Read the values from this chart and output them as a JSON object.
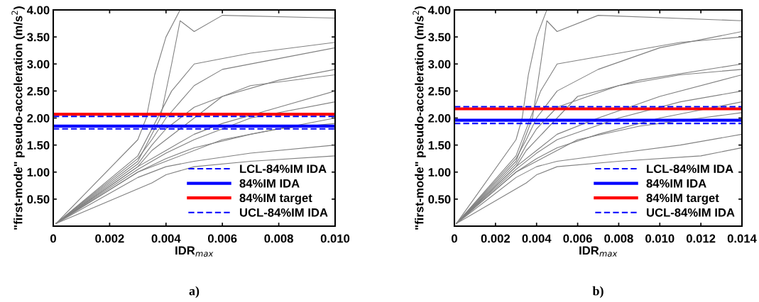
{
  "chart_data": [
    {
      "type": "line",
      "xlabel": "IDR$_{max}$",
      "ylabel": "\"first-mode\" pseudo-acceleration (m/s$^{2}$)",
      "annotations": [
        "a)"
      ],
      "xlim": [
        0,
        0.01
      ],
      "xticks": [
        0,
        0.002,
        0.004,
        0.006,
        0.008,
        {
          "value": 0.01,
          "label": "0.010"
        }
      ],
      "ylim": [
        0,
        4
      ],
      "yticks": [
        {
          "value": 0.5,
          "label": "0.50"
        },
        {
          "value": 1,
          "label": "1.00"
        },
        {
          "value": 1.5,
          "label": "1.50"
        },
        {
          "value": 2,
          "label": "2.00"
        },
        {
          "value": 2.5,
          "label": "2.50"
        },
        {
          "value": 3,
          "label": "3.00"
        },
        {
          "value": 3.5,
          "label": "3.50"
        },
        {
          "value": 4,
          "label": "4.00"
        }
      ],
      "grid": false,
      "legend": "bottom right",
      "line_style": "solid",
      "marker": "none",
      "series": [
        {
          "color": "#808080",
          "x": [
            0.0001,
            0.003,
            0.0033,
            0.0036,
            0.004,
            0.0045
          ],
          "values": [
            0.05,
            1.6,
            2.0,
            2.8,
            3.5,
            4.0
          ]
        },
        {
          "color": "#808080",
          "x": [
            0.0001,
            0.003,
            0.0035,
            0.004,
            0.005,
            0.006,
            0.008,
            0.01
          ],
          "values": [
            0.05,
            1.25,
            1.6,
            2.0,
            2.6,
            2.9,
            3.1,
            3.3
          ]
        },
        {
          "color": "#808080",
          "x": [
            0.0001,
            0.003,
            0.004,
            0.005,
            0.006,
            0.008,
            0.01
          ],
          "values": [
            0.05,
            1.1,
            1.4,
            1.7,
            1.9,
            2.2,
            2.5
          ]
        },
        {
          "color": "#808080",
          "x": [
            0.0001,
            0.003,
            0.004,
            0.005,
            0.007,
            0.01
          ],
          "values": [
            0.05,
            1.0,
            1.25,
            1.45,
            1.7,
            2.0
          ]
        },
        {
          "color": "#808080",
          "x": [
            0.0001,
            0.003,
            0.004,
            0.005,
            0.007,
            0.01
          ],
          "values": [
            0.05,
            0.9,
            1.1,
            1.2,
            1.35,
            1.5
          ]
        },
        {
          "color": "#808080",
          "x": [
            0.0001,
            0.0035,
            0.004,
            0.005,
            0.007,
            0.01
          ],
          "values": [
            0.05,
            0.8,
            0.95,
            1.1,
            1.2,
            1.3
          ]
        },
        {
          "color": "#808080",
          "x": [
            0.0001,
            0.003,
            0.0038,
            0.0042,
            0.0045,
            0.005,
            0.006,
            0.01
          ],
          "values": [
            0.05,
            1.2,
            2.0,
            3.0,
            3.8,
            3.6,
            3.9,
            3.85
          ]
        },
        {
          "color": "#808080",
          "x": [
            0.0001,
            0.003,
            0.0035,
            0.004,
            0.005,
            0.007,
            0.01
          ],
          "values": [
            0.05,
            1.15,
            1.5,
            1.8,
            2.2,
            2.6,
            2.8
          ]
        },
        {
          "color": "#808080",
          "x": [
            0.0001,
            0.003,
            0.004,
            0.005,
            0.007,
            0.01
          ],
          "values": [
            0.05,
            1.05,
            1.35,
            1.6,
            2.0,
            2.3
          ]
        },
        {
          "color": "#808080",
          "x": [
            0.0001,
            0.003,
            0.004,
            0.006,
            0.008,
            0.01
          ],
          "values": [
            0.05,
            1.0,
            1.2,
            1.6,
            1.8,
            1.9
          ]
        },
        {
          "color": "#808080",
          "x": [
            0.0001,
            0.003,
            0.0036,
            0.0042,
            0.005,
            0.007,
            0.01
          ],
          "values": [
            0.05,
            1.3,
            1.9,
            2.5,
            3.0,
            3.2,
            3.4
          ]
        },
        {
          "color": "#808080",
          "x": [
            0.0001,
            0.003,
            0.0035,
            0.0045,
            0.006,
            0.008,
            0.01
          ],
          "values": [
            0.05,
            1.1,
            1.4,
            1.8,
            2.4,
            2.7,
            2.9
          ]
        }
      ],
      "ref_lines": [
        {
          "axis": "y",
          "value": 1.8,
          "label": "LCL-84%IM IDA",
          "color": "#0000ff",
          "line_style": "dashed"
        },
        {
          "axis": "y",
          "value": 1.85,
          "label": "84%IM IDA",
          "color": "#0000ff",
          "line_style": "solid"
        },
        {
          "axis": "y",
          "value": 2.07,
          "label": "84%IM target",
          "color": "#ff0000",
          "line_style": "solid"
        },
        {
          "axis": "y",
          "value": 2.03,
          "label": "UCL-84%IM IDA",
          "color": "#0000ff",
          "line_style": "dashed"
        }
      ]
    },
    {
      "type": "line",
      "xlabel": "IDR$_{max}$",
      "ylabel": "\"first-mode\" pseudo-acceleration (m/s$^{2}$)",
      "annotations": [
        "b)"
      ],
      "xlim": [
        0,
        0.014
      ],
      "xticks": [
        0,
        0.002,
        0.004,
        0.006,
        0.008,
        {
          "value": 0.01,
          "label": "0.010"
        },
        0.012,
        0.014
      ],
      "ylim": [
        0,
        4
      ],
      "yticks": [
        {
          "value": 0.5,
          "label": "0.50"
        },
        {
          "value": 1,
          "label": "1.00"
        },
        {
          "value": 1.5,
          "label": "1.50"
        },
        {
          "value": 2,
          "label": "2.00"
        },
        {
          "value": 2.5,
          "label": "2.50"
        },
        {
          "value": 3,
          "label": "3.00"
        },
        {
          "value": 3.5,
          "label": "3.50"
        },
        {
          "value": 4,
          "label": "4.00"
        }
      ],
      "grid": false,
      "legend": "bottom right",
      "line_style": "solid",
      "marker": "none",
      "series": [
        {
          "color": "#808080",
          "x": [
            0.0001,
            0.003,
            0.0033,
            0.0036,
            0.004,
            0.0045
          ],
          "values": [
            0.05,
            1.6,
            2.0,
            2.8,
            3.5,
            4.0
          ]
        },
        {
          "color": "#808080",
          "x": [
            0.0001,
            0.003,
            0.0035,
            0.004,
            0.005,
            0.007,
            0.01,
            0.014
          ],
          "values": [
            0.05,
            1.25,
            1.6,
            2.0,
            2.5,
            2.9,
            3.3,
            3.6
          ]
        },
        {
          "color": "#808080",
          "x": [
            0.0001,
            0.003,
            0.004,
            0.005,
            0.007,
            0.01,
            0.014
          ],
          "values": [
            0.05,
            1.1,
            1.4,
            1.7,
            2.0,
            2.4,
            2.8
          ]
        },
        {
          "color": "#808080",
          "x": [
            0.0001,
            0.003,
            0.004,
            0.005,
            0.007,
            0.01,
            0.014
          ],
          "values": [
            0.05,
            1.0,
            1.25,
            1.45,
            1.7,
            2.0,
            2.3
          ]
        },
        {
          "color": "#808080",
          "x": [
            0.0001,
            0.003,
            0.004,
            0.005,
            0.008,
            0.011,
            0.014
          ],
          "values": [
            0.05,
            0.9,
            1.1,
            1.2,
            1.35,
            1.5,
            1.7
          ]
        },
        {
          "color": "#808080",
          "x": [
            0.0001,
            0.0035,
            0.004,
            0.005,
            0.008,
            0.012,
            0.014
          ],
          "values": [
            0.05,
            0.8,
            0.95,
            1.1,
            1.2,
            1.3,
            1.45
          ]
        },
        {
          "color": "#808080",
          "x": [
            0.0001,
            0.003,
            0.0038,
            0.0042,
            0.0045,
            0.005,
            0.007,
            0.014
          ],
          "values": [
            0.05,
            1.2,
            2.0,
            3.0,
            3.8,
            3.6,
            3.9,
            3.8
          ]
        },
        {
          "color": "#808080",
          "x": [
            0.0001,
            0.003,
            0.0035,
            0.004,
            0.005,
            0.008,
            0.011,
            0.014
          ],
          "values": [
            0.05,
            1.15,
            1.5,
            1.8,
            2.2,
            2.6,
            2.8,
            2.9
          ]
        },
        {
          "color": "#808080",
          "x": [
            0.0001,
            0.003,
            0.004,
            0.005,
            0.008,
            0.011,
            0.014
          ],
          "values": [
            0.05,
            1.05,
            1.35,
            1.6,
            2.0,
            2.3,
            2.5
          ]
        },
        {
          "color": "#808080",
          "x": [
            0.0001,
            0.003,
            0.004,
            0.006,
            0.009,
            0.012,
            0.014
          ],
          "values": [
            0.05,
            1.0,
            1.2,
            1.6,
            1.85,
            2.0,
            2.1
          ]
        },
        {
          "color": "#808080",
          "x": [
            0.0001,
            0.003,
            0.0036,
            0.0042,
            0.005,
            0.008,
            0.011,
            0.014
          ],
          "values": [
            0.05,
            1.3,
            1.9,
            2.5,
            3.0,
            3.2,
            3.4,
            3.5
          ]
        },
        {
          "color": "#808080",
          "x": [
            0.0001,
            0.003,
            0.0035,
            0.0045,
            0.006,
            0.009,
            0.014
          ],
          "values": [
            0.05,
            1.1,
            1.4,
            1.8,
            2.4,
            2.7,
            3.0
          ]
        }
      ],
      "ref_lines": [
        {
          "axis": "y",
          "value": 1.9,
          "label": "LCL-84%IM IDA",
          "color": "#0000ff",
          "line_style": "dashed"
        },
        {
          "axis": "y",
          "value": 1.96,
          "label": "84%IM IDA",
          "color": "#0000ff",
          "line_style": "solid"
        },
        {
          "axis": "y",
          "value": 2.17,
          "label": "84%IM target",
          "color": "#ff0000",
          "line_style": "solid"
        },
        {
          "axis": "y",
          "value": 2.21,
          "label": "UCL-84%IM IDA",
          "color": "#0000ff",
          "line_style": "dashed"
        }
      ]
    }
  ]
}
